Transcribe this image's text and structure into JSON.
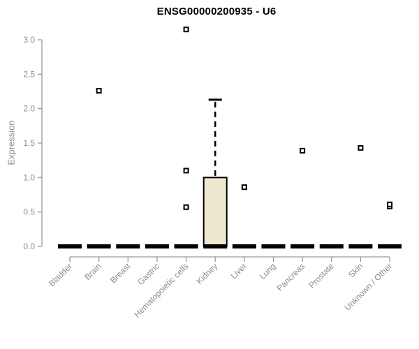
{
  "chart_data": {
    "type": "boxplot",
    "title": "ENSG00000200935 - U6",
    "ylabel": "Expression",
    "xlabel": "",
    "ylim": [
      0.0,
      3.0
    ],
    "yticks": [
      0.0,
      0.5,
      1.0,
      1.5,
      2.0,
      2.5,
      3.0
    ],
    "grid": false,
    "legend": false,
    "categories": [
      "Bladder",
      "Brain",
      "Breast",
      "Gastric",
      "Hematopoietic cells",
      "Kidney",
      "Liver",
      "Lung",
      "Pancreas",
      "Prostate",
      "Skin",
      "Unknown / Other"
    ],
    "boxes": [
      {
        "category": "Bladder",
        "whisker_low": 0,
        "q1": 0,
        "median": 0,
        "q3": 0,
        "whisker_high": 0,
        "outliers": []
      },
      {
        "category": "Brain",
        "whisker_low": 0,
        "q1": 0,
        "median": 0,
        "q3": 0,
        "whisker_high": 0,
        "outliers": [
          2.26
        ]
      },
      {
        "category": "Breast",
        "whisker_low": 0,
        "q1": 0,
        "median": 0,
        "q3": 0,
        "whisker_high": 0,
        "outliers": []
      },
      {
        "category": "Gastric",
        "whisker_low": 0,
        "q1": 0,
        "median": 0,
        "q3": 0,
        "whisker_high": 0,
        "outliers": []
      },
      {
        "category": "Hematopoietic cells",
        "whisker_low": 0,
        "q1": 0,
        "median": 0,
        "q3": 0,
        "whisker_high": 0,
        "outliers": [
          3.15,
          1.1,
          0.57
        ]
      },
      {
        "category": "Kidney",
        "whisker_low": 0,
        "q1": 0,
        "median": 0,
        "q3": 1.0,
        "whisker_high": 2.13,
        "outliers": []
      },
      {
        "category": "Liver",
        "whisker_low": 0,
        "q1": 0,
        "median": 0,
        "q3": 0,
        "whisker_high": 0,
        "outliers": [
          0.86
        ]
      },
      {
        "category": "Lung",
        "whisker_low": 0,
        "q1": 0,
        "median": 0,
        "q3": 0,
        "whisker_high": 0,
        "outliers": []
      },
      {
        "category": "Pancreas",
        "whisker_low": 0,
        "q1": 0,
        "median": 0,
        "q3": 0,
        "whisker_high": 0,
        "outliers": [
          1.39
        ]
      },
      {
        "category": "Prostate",
        "whisker_low": 0,
        "q1": 0,
        "median": 0,
        "q3": 0,
        "whisker_high": 0,
        "outliers": []
      },
      {
        "category": "Skin",
        "whisker_low": 0,
        "q1": 0,
        "median": 0,
        "q3": 0,
        "whisker_high": 0,
        "outliers": [
          1.43
        ]
      },
      {
        "category": "Unknown / Other",
        "whisker_low": 0,
        "q1": 0,
        "median": 0,
        "q3": 0,
        "whisker_high": 0,
        "outliers": [
          0.58,
          0.61
        ]
      }
    ],
    "colors": {
      "box_fill": "#EDE8CF",
      "box_border": "#000000",
      "median": "#000000",
      "outlier_fill": "#FFFFFF",
      "outlier_border": "#000000",
      "axis_line": "#999999",
      "axis_text": "#8C8C8C",
      "title_text": "#000000",
      "background": "#FFFFFF"
    }
  }
}
